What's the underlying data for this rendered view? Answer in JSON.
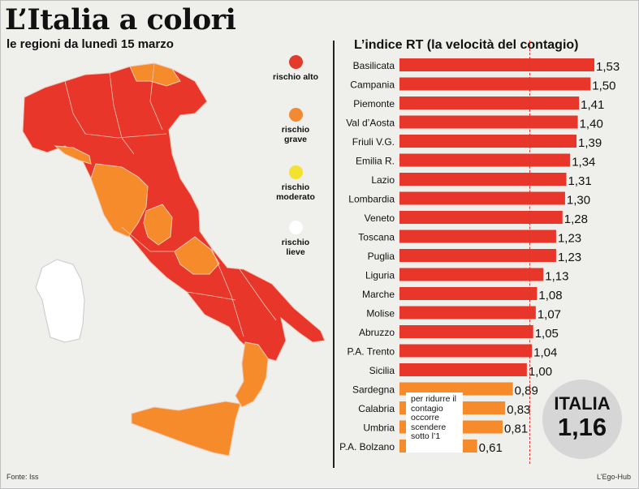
{
  "header": {
    "title": "L’Italia a colori",
    "subtitle": "le regioni da lunedì 15 marzo",
    "rt_title": "L’indice RT (la velocità del contagio)"
  },
  "legend": [
    {
      "label": "rischio alto",
      "color": "#e33b2b"
    },
    {
      "label": "rischio grave",
      "color": "#f28a33"
    },
    {
      "label": "rischio moderato",
      "color": "#f4e231"
    },
    {
      "label": "rischio lieve",
      "color": "#ffffff"
    }
  ],
  "colors": {
    "red": "#e8372a",
    "orange": "#f68b2c",
    "threshold": "#e0332a"
  },
  "note": "per ridurre il contagio occorre scendere sotto l’1",
  "italia": {
    "label": "ITALIA",
    "value": "1,16"
  },
  "footer": {
    "source": "Fonte: Iss",
    "credit": "L’Ego-Hub"
  },
  "chart_data": {
    "type": "bar",
    "orientation": "horizontal",
    "title": "L’indice RT (la velocità del contagio)",
    "threshold": 1.0,
    "categories": [
      "Basilicata",
      "Campania",
      "Piemonte",
      "Val d’Aosta",
      "Friuli V.G.",
      "Emilia R.",
      "Lazio",
      "Lombardia",
      "Veneto",
      "Toscana",
      "Puglia",
      "Liguria",
      "Marche",
      "Molise",
      "Abruzzo",
      "P.A. Trento",
      "Sicilia",
      "Sardegna",
      "Calabria",
      "Umbria",
      "P.A. Bolzano"
    ],
    "values": [
      1.53,
      1.5,
      1.41,
      1.4,
      1.39,
      1.34,
      1.31,
      1.3,
      1.28,
      1.23,
      1.23,
      1.13,
      1.08,
      1.07,
      1.05,
      1.04,
      1.0,
      0.89,
      0.83,
      0.81,
      0.61
    ],
    "value_labels": [
      "1,53",
      "1,50",
      "1,41",
      "1,40",
      "1,39",
      "1,34",
      "1,31",
      "1,30",
      "1,28",
      "1,23",
      "1,23",
      "1,13",
      "1,08",
      "1,07",
      "1,05",
      "1,04",
      "1,00",
      "0,89",
      "0,83",
      "0,81",
      "0,61"
    ],
    "risk": [
      "alto",
      "alto",
      "alto",
      "alto",
      "alto",
      "alto",
      "alto",
      "alto",
      "alto",
      "alto",
      "alto",
      "alto",
      "alto",
      "alto",
      "alto",
      "alto",
      "alto",
      "grave",
      "grave",
      "grave",
      "grave"
    ]
  }
}
